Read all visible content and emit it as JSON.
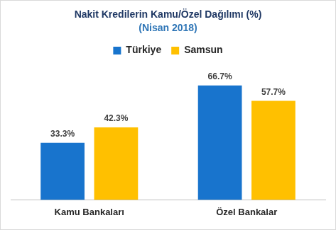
{
  "chart_data": {
    "type": "bar",
    "title": "Nakit Kredilerin Kamu/Özel Dağılımı (%)",
    "subtitle": "(Nisan 2018)",
    "categories": [
      "Kamu Bankaları",
      "Özel Bankalar"
    ],
    "series": [
      {
        "name": "Türkiye",
        "color": "#1874cd",
        "values": [
          33.3,
          66.7
        ],
        "value_labels": [
          "33.3%",
          "66.7%"
        ]
      },
      {
        "name": "Samsun",
        "color": "#ffc000",
        "values": [
          42.3,
          57.7
        ],
        "value_labels": [
          "42.3%",
          "57.7%"
        ]
      }
    ],
    "data_labels": true,
    "legend": "top",
    "tick_labels": "x",
    "grid": false
  }
}
